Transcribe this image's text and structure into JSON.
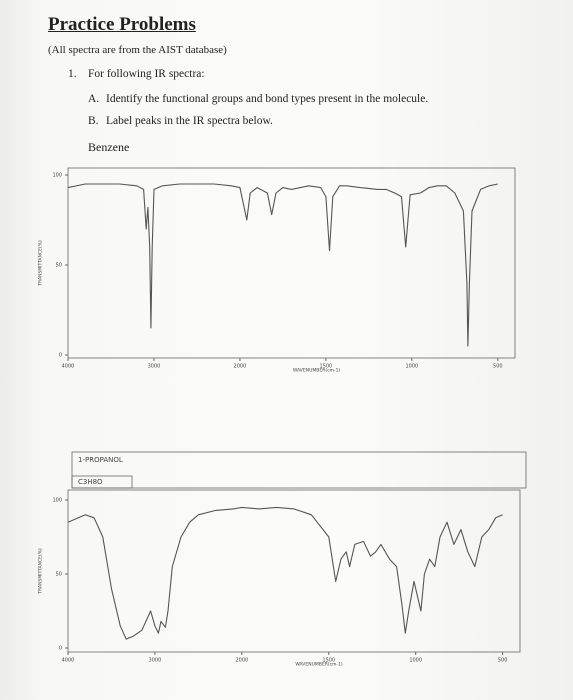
{
  "header": {
    "title": "Practice Problems",
    "note": "(All spectra are from the AIST database)"
  },
  "questions": [
    {
      "number": "1.",
      "text": "For following IR spectra:",
      "parts": [
        {
          "letter": "A.",
          "text": "Identify the functional groups and bond types present in the molecule."
        },
        {
          "letter": "B.",
          "text": "Label peaks in the IR spectra below."
        }
      ],
      "compound": "Benzene"
    }
  ],
  "chart_data": [
    {
      "type": "line",
      "color": "#555555",
      "x": [
        4000,
        3800,
        3600,
        3400,
        3200,
        3120,
        3090,
        3070,
        3050,
        3036,
        3020,
        3000,
        2900,
        2700,
        2500,
        2300,
        2100,
        2000,
        1960,
        1940,
        1900,
        1840,
        1815,
        1790,
        1750,
        1700,
        1600,
        1530,
        1500,
        1479,
        1460,
        1420,
        1380,
        1300,
        1200,
        1150,
        1100,
        1060,
        1036,
        1010,
        950,
        900,
        850,
        800,
        750,
        700,
        680,
        674,
        665,
        650,
        600,
        550,
        500
      ],
      "values": [
        93,
        95,
        95,
        95,
        94,
        92,
        70,
        82,
        60,
        15,
        60,
        92,
        94,
        95,
        95,
        95,
        94,
        93,
        75,
        90,
        93,
        90,
        78,
        90,
        93,
        92,
        94,
        93,
        88,
        58,
        88,
        94,
        94,
        93,
        92,
        92,
        90,
        88,
        60,
        89,
        90,
        93,
        94,
        94,
        90,
        80,
        40,
        5,
        40,
        80,
        92,
        94,
        95
      ],
      "xlim": [
        4000,
        400
      ],
      "ylim": [
        0,
        100
      ],
      "xticks": [
        4000,
        3000,
        2000,
        1500,
        1000,
        500
      ],
      "yticks": [
        0,
        50,
        100
      ],
      "xlabel": "WAVENUMBER(cm-1)",
      "ylabel": "TRANSMITTANCE(%)"
    },
    {
      "type": "line",
      "color": "#555555",
      "title": "1-PROPANOL",
      "subtitle": "C3H8O",
      "x": [
        4000,
        3800,
        3700,
        3600,
        3500,
        3400,
        3330,
        3250,
        3150,
        3050,
        3000,
        2960,
        2930,
        2880,
        2850,
        2800,
        2700,
        2600,
        2500,
        2300,
        2100,
        2000,
        1900,
        1800,
        1700,
        1600,
        1500,
        1460,
        1430,
        1400,
        1380,
        1350,
        1300,
        1260,
        1230,
        1200,
        1150,
        1110,
        1080,
        1060,
        1040,
        1010,
        970,
        950,
        920,
        890,
        860,
        820,
        780,
        740,
        700,
        660,
        620,
        580,
        540,
        500
      ],
      "values": [
        85,
        90,
        88,
        75,
        40,
        15,
        6,
        8,
        12,
        25,
        15,
        10,
        18,
        14,
        25,
        55,
        75,
        85,
        90,
        93,
        94,
        95,
        94,
        95,
        94,
        90,
        75,
        45,
        60,
        65,
        55,
        70,
        72,
        62,
        65,
        70,
        60,
        55,
        30,
        10,
        25,
        45,
        25,
        50,
        60,
        55,
        75,
        85,
        70,
        80,
        65,
        55,
        75,
        80,
        88,
        90
      ],
      "xlim": [
        4000,
        400
      ],
      "ylim": [
        0,
        100
      ],
      "xticks": [
        4000,
        3000,
        2000,
        1500,
        1000,
        500
      ],
      "yticks": [
        0,
        50,
        100
      ],
      "xlabel": "WAVENUMBER(cm-1)",
      "ylabel": "TRANSMITTANCE(%)"
    }
  ]
}
